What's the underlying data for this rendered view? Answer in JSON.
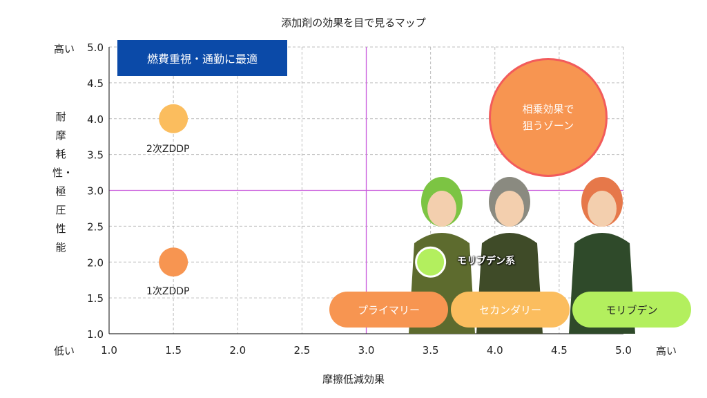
{
  "chart_data": {
    "type": "scatter",
    "title": "添加剤の効果を目で見るマップ",
    "xlabel": "摩擦低減効果",
    "ylabel": "耐摩耗性・極圧性能",
    "xlim": [
      1.0,
      5.0
    ],
    "ylim": [
      1.0,
      5.0
    ],
    "xticks": [
      "1.0",
      "1.5",
      "2.0",
      "2.5",
      "3.0",
      "3.5",
      "4.0",
      "4.5",
      "5.0"
    ],
    "yticks": [
      "1.0",
      "1.5",
      "2.0",
      "2.5",
      "3.0",
      "3.5",
      "4.0",
      "4.5",
      "5.0"
    ],
    "grid": true,
    "quadrant_lines": {
      "x": 3.0,
      "y": 3.0
    },
    "points": [
      {
        "name": "2次ZDDP",
        "x": 1.5,
        "y": 4.0,
        "color": "#fbbd5e"
      },
      {
        "name": "1次ZDDP",
        "x": 1.5,
        "y": 2.0,
        "color": "#f79551"
      },
      {
        "name": "モリブデン系",
        "x": 3.5,
        "y": 2.0,
        "color": "#b3ef5e"
      }
    ],
    "annotations": {
      "y_high": "高い",
      "y_low": "低い",
      "x_high": "高い",
      "banner": "燃費重視・通勤に最適",
      "zone_line1": "相乗効果で",
      "zone_line2": "狙うゾーン",
      "pills": [
        {
          "label": "プライマリー",
          "color": "#f79551"
        },
        {
          "label": "セカンダリー",
          "color": "#fbbd5e"
        },
        {
          "label": "モリブデン",
          "color": "#b3ef5e"
        }
      ]
    }
  }
}
